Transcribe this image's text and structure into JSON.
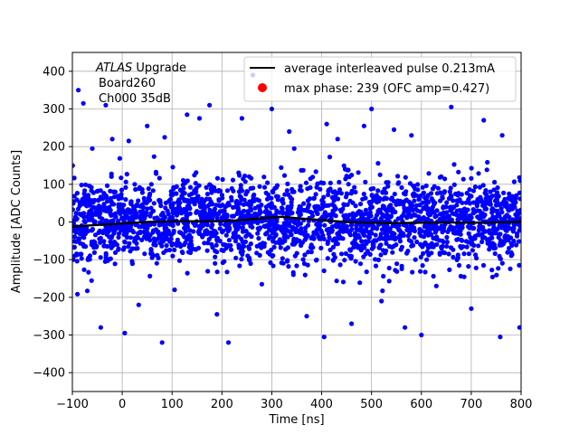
{
  "chart_data": {
    "type": "scatter",
    "title": "",
    "xlabel": "Time [ns]",
    "ylabel": "Amplitude [ADC Counts]",
    "xlim": [
      -100,
      800
    ],
    "ylim": [
      -450,
      450
    ],
    "xticks": [
      -100,
      0,
      100,
      200,
      300,
      400,
      500,
      600,
      700,
      800
    ],
    "yticks": [
      -400,
      -300,
      -200,
      -100,
      0,
      100,
      200,
      300,
      400
    ],
    "grid": true,
    "legend_position": "top-right",
    "annotation": {
      "experiment_italic": "ATLAS",
      "experiment_rest": " Upgrade",
      "line2": "Board260",
      "line3": "Ch000 35dB"
    },
    "series": [
      {
        "name": "average interleaved pulse 0.213mA",
        "kind": "line",
        "color": "#000000",
        "x": [
          -100,
          -50,
          0,
          50,
          100,
          150,
          200,
          250,
          300,
          320,
          350,
          400,
          450,
          500,
          550,
          600,
          650,
          700,
          750,
          800
        ],
        "y": [
          -12,
          -8,
          -4,
          0,
          2,
          2,
          2,
          6,
          12,
          14,
          10,
          5,
          0,
          -2,
          -3,
          -2,
          -1,
          -2,
          -1,
          0
        ]
      },
      {
        "name": "max phase: 239 (OFC amp=0.427)",
        "kind": "marker",
        "color": "#ff0000",
        "x": [],
        "y": []
      },
      {
        "name": "",
        "kind": "scatter",
        "color": "#0000ff",
        "noise_sigma": 55,
        "x": [
          -88,
          -78,
          -60,
          -43,
          -33,
          -20,
          5,
          13,
          33,
          50,
          80,
          85,
          105,
          130,
          155,
          175,
          190,
          213,
          240,
          262,
          300,
          335,
          345,
          370,
          405,
          410,
          432,
          460,
          485,
          500,
          520,
          545,
          567,
          580,
          600,
          630,
          660,
          700,
          725,
          758,
          762,
          797
        ],
        "y": [
          350,
          315,
          195,
          -280,
          310,
          220,
          -295,
          215,
          -220,
          255,
          -320,
          225,
          -180,
          285,
          275,
          310,
          -245,
          -320,
          275,
          390,
          300,
          240,
          195,
          -250,
          -305,
          260,
          220,
          -270,
          255,
          300,
          -210,
          245,
          -280,
          230,
          -300,
          -170,
          305,
          -230,
          270,
          -305,
          230,
          -280
        ]
      }
    ]
  }
}
